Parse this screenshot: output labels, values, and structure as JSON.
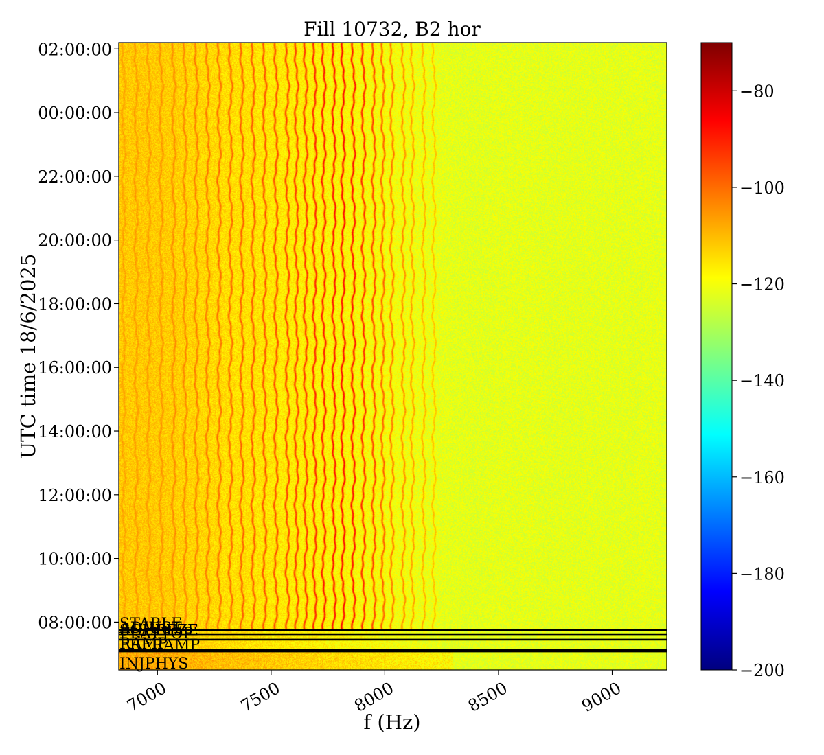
{
  "chart_data": {
    "type": "heatmap",
    "title": "Fill 10732, B2 hor",
    "xlabel": "f (Hz)",
    "ylabel": "UTC time 18/6/2025",
    "xlim": [
      6830,
      9240
    ],
    "x_ticks": [
      {
        "value": 7000,
        "label": "7000"
      },
      {
        "value": 7500,
        "label": "7500"
      },
      {
        "value": 8000,
        "label": "8000"
      },
      {
        "value": 8500,
        "label": "8500"
      },
      {
        "value": 9000,
        "label": "9000"
      }
    ],
    "ylim_hours": [
      6.5,
      26.2
    ],
    "y_ticks": [
      {
        "value": 8,
        "label": "08:00:00"
      },
      {
        "value": 10,
        "label": "10:00:00"
      },
      {
        "value": 12,
        "label": "12:00:00"
      },
      {
        "value": 14,
        "label": "14:00:00"
      },
      {
        "value": 16,
        "label": "16:00:00"
      },
      {
        "value": 18,
        "label": "18:00:00"
      },
      {
        "value": 20,
        "label": "20:00:00"
      },
      {
        "value": 22,
        "label": "22:00:00"
      },
      {
        "value": 24,
        "label": "00:00:00"
      },
      {
        "value": 26,
        "label": "02:00:00"
      }
    ],
    "colorbar": {
      "range": [
        -200,
        -70
      ],
      "colormap": "jet",
      "ticks": [
        {
          "value": -80,
          "label": "−80"
        },
        {
          "value": -100,
          "label": "−100"
        },
        {
          "value": -120,
          "label": "−120"
        },
        {
          "value": -140,
          "label": "−140"
        },
        {
          "value": -160,
          "label": "−160"
        },
        {
          "value": -180,
          "label": "−180"
        },
        {
          "value": -200,
          "label": "−200"
        }
      ]
    },
    "background_level": {
      "low_f": -112,
      "high_f": -122
    },
    "spectral_lines_hz": [
      6850,
      6905,
      6960,
      7015,
      7070,
      7120,
      7170,
      7220,
      7270,
      7320,
      7370,
      7420,
      7470,
      7520,
      7570,
      7610,
      7650,
      7690,
      7730,
      7775,
      7815,
      7860,
      7905,
      7950,
      7990,
      8030,
      8080,
      8120,
      8170,
      8215
    ],
    "spectral_lines_db": [
      -107,
      -106,
      -106,
      -105,
      -104,
      -103,
      -102,
      -101,
      -100,
      -99,
      -98,
      -97,
      -96,
      -95,
      -94,
      -93,
      -92,
      -90,
      -88,
      -87,
      -86,
      -87,
      -90,
      -94,
      -98,
      -101,
      -104,
      -106,
      -108,
      -110
    ],
    "beam_mode_markers": [
      {
        "label": "STABLE",
        "hour": 7.75
      },
      {
        "label": "ADJUST",
        "hour": 7.62
      },
      {
        "label": "SQUEEZE",
        "hour": 7.55
      },
      {
        "label": "FLATTOP",
        "hour": 7.45
      },
      {
        "label": "RAMP",
        "hour": 7.12
      },
      {
        "label": "PRERAMP",
        "hour": 7.08
      },
      {
        "label": "INJPHYS",
        "hour": 6.5
      }
    ],
    "marker_line_hours": [
      7.75,
      7.62,
      7.45,
      7.12,
      7.08
    ]
  }
}
